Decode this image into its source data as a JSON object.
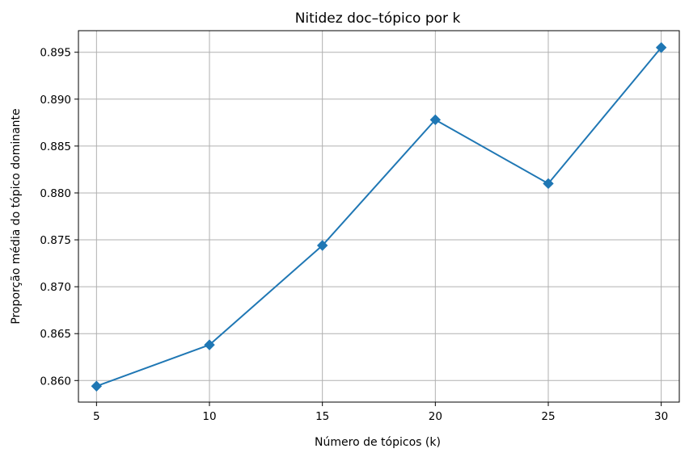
{
  "chart_data": {
    "type": "line",
    "title": "Nitidez doc–tópico por k",
    "xlabel": "Número de tópicos (k)",
    "ylabel": "Proporção média do tópico dominante",
    "xlim": [
      4.2,
      30.8
    ],
    "ylim": [
      0.8577,
      0.8973
    ],
    "xticks": [
      5,
      10,
      15,
      20,
      25,
      30
    ],
    "xtick_labels": [
      "5",
      "10",
      "15",
      "20",
      "25",
      "30"
    ],
    "yticks": [
      0.86,
      0.865,
      0.87,
      0.875,
      0.88,
      0.885,
      0.89,
      0.895
    ],
    "ytick_labels": [
      "0.860",
      "0.865",
      "0.870",
      "0.875",
      "0.880",
      "0.885",
      "0.890",
      "0.895"
    ],
    "grid": true,
    "series": [
      {
        "color": "#1f77b4",
        "marker": "diamond",
        "x": [
          5,
          10,
          15,
          20,
          25,
          30
        ],
        "y": [
          0.8594,
          0.8638,
          0.8744,
          0.8878,
          0.881,
          0.8955
        ]
      }
    ]
  }
}
